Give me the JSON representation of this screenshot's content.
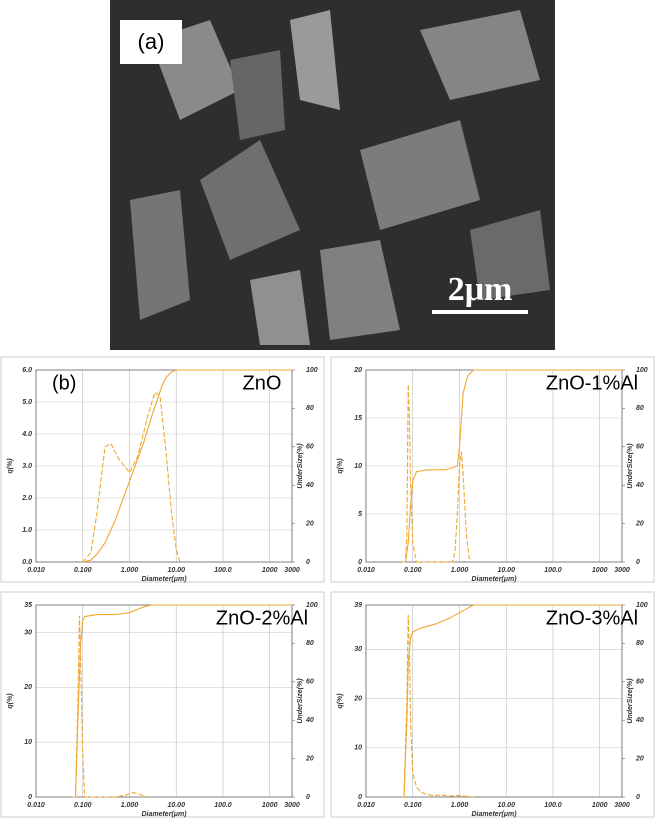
{
  "panel_a": {
    "label": "(a)",
    "scale_bar": "2μm"
  },
  "panel_b": {
    "label": "(b)"
  },
  "chart_data": [
    {
      "type": "line",
      "title": "ZnO",
      "x_label": "Diameter(μm)",
      "y_label": "q(%)",
      "y2_label": "UnderSize(%)",
      "xlog": true,
      "grid": true,
      "xlim": [
        0.01,
        3000
      ],
      "xticks": [
        {
          "value": 0.01,
          "label": "0.010"
        },
        {
          "value": 0.1,
          "label": "0.100"
        },
        {
          "value": 1,
          "label": "1.000"
        },
        {
          "value": 10,
          "label": "10.00"
        },
        {
          "value": 100,
          "label": "100.0"
        },
        1000,
        3000
      ],
      "ylim": [
        0,
        6
      ],
      "yticks": [
        {
          "value": 0,
          "label": "0.0"
        },
        {
          "value": 1,
          "label": "1.0"
        },
        {
          "value": 2,
          "label": "2.0"
        },
        {
          "value": 3,
          "label": "3.0"
        },
        {
          "value": 4,
          "label": "4.0"
        },
        {
          "value": 5,
          "label": "5.0"
        },
        {
          "value": 6,
          "label": "6.0"
        }
      ],
      "y2lim": [
        0,
        100
      ],
      "y2ticks": [
        0,
        20,
        40,
        60,
        80,
        100
      ],
      "series": [
        {
          "color": "#f0a830",
          "style": "dashed",
          "x": [
            0.1,
            0.15,
            0.2,
            0.3,
            0.4,
            0.6,
            1.0,
            1.5,
            2.5,
            3.5,
            4.5,
            6,
            8,
            10,
            12
          ],
          "values": [
            0,
            0.3,
            1.5,
            3.6,
            3.7,
            3.2,
            2.8,
            3.3,
            4.6,
            5.3,
            5.2,
            3.5,
            1.5,
            0.4,
            0
          ]
        },
        {
          "color": "#f0a830",
          "style": "solid",
          "axis": "y2",
          "x": [
            0.1,
            0.15,
            0.2,
            0.3,
            0.5,
            1,
            2,
            3,
            4,
            5,
            6,
            8,
            10,
            12,
            3000
          ],
          "values": [
            0,
            1,
            4,
            10,
            22,
            42,
            62,
            76,
            85,
            92,
            96,
            99,
            100,
            100,
            100
          ]
        }
      ]
    },
    {
      "type": "line",
      "title": "ZnO-1%Al",
      "x_label": "Diameter(μm)",
      "y_label": "q(%)",
      "y2_label": "UnderSize(%)",
      "xlog": true,
      "grid": true,
      "xlim": [
        0.01,
        3000
      ],
      "xticks": [
        {
          "value": 0.01,
          "label": "0.010"
        },
        {
          "value": 0.1,
          "label": "0.100"
        },
        {
          "value": 1,
          "label": "1.000"
        },
        {
          "value": 10,
          "label": "10.00"
        },
        {
          "value": 100,
          "label": "100.0"
        },
        1000,
        3000
      ],
      "ylim": [
        0,
        20
      ],
      "yticks": [
        0,
        5,
        10,
        15,
        20
      ],
      "y2lim": [
        0,
        100
      ],
      "y2ticks": [
        0,
        20,
        40,
        60,
        80,
        100
      ],
      "series": [
        {
          "color": "#f0a830",
          "style": "dashed",
          "x": [
            0.06,
            0.07,
            0.075,
            0.08,
            0.085,
            0.09,
            0.1,
            0.12,
            0.7,
            0.8,
            0.9,
            1.0,
            1.1,
            1.2,
            1.4,
            1.6,
            1.8
          ],
          "values": [
            0,
            0,
            3,
            18.5,
            15,
            8,
            2,
            0,
            0,
            1,
            5,
            10,
            11.5,
            9,
            3,
            0.5,
            0
          ]
        },
        {
          "color": "#f0a830",
          "style": "solid",
          "axis": "y2",
          "x": [
            0.06,
            0.07,
            0.08,
            0.09,
            0.1,
            0.12,
            0.2,
            0.5,
            0.9,
            1.0,
            1.1,
            1.2,
            1.5,
            2,
            3000
          ],
          "values": [
            0,
            0,
            10,
            30,
            42,
            47,
            48,
            48,
            50,
            60,
            75,
            88,
            97,
            100,
            100
          ]
        }
      ]
    },
    {
      "type": "line",
      "title": "ZnO-2%Al",
      "x_label": "Diameter(μm)",
      "y_label": "q(%)",
      "y2_label": "UnderSize(%)",
      "xlog": true,
      "grid": true,
      "xlim": [
        0.01,
        3000
      ],
      "xticks": [
        {
          "value": 0.01,
          "label": "0.010"
        },
        {
          "value": 0.1,
          "label": "0.100"
        },
        {
          "value": 1,
          "label": "1.000"
        },
        {
          "value": 10,
          "label": "10.00"
        },
        {
          "value": 100,
          "label": "100.0"
        },
        1000,
        3000
      ],
      "ylim": [
        0,
        35
      ],
      "yticks": [
        0,
        10,
        20,
        30,
        35
      ],
      "y2lim": [
        0,
        100
      ],
      "y2ticks": [
        0,
        20,
        40,
        60,
        80,
        100
      ],
      "series": [
        {
          "color": "#f0a830",
          "style": "dashed",
          "x": [
            0.06,
            0.07,
            0.08,
            0.085,
            0.09,
            0.1,
            0.11,
            0.5,
            0.8,
            1.2,
            1.6,
            2.5
          ],
          "values": [
            0,
            0,
            20,
            33,
            25,
            8,
            0,
            0,
            0.3,
            0.8,
            0.5,
            0
          ]
        },
        {
          "color": "#f0a830",
          "style": "solid",
          "axis": "y2",
          "x": [
            0.06,
            0.07,
            0.08,
            0.09,
            0.1,
            0.11,
            0.2,
            0.5,
            1,
            2,
            3,
            3000
          ],
          "values": [
            0,
            0,
            45,
            80,
            92,
            94,
            95,
            95,
            96,
            99,
            100,
            100
          ]
        }
      ]
    },
    {
      "type": "line",
      "title": "ZnO-3%Al",
      "x_label": "Diameter(μm)",
      "y_label": "q(%)",
      "y2_label": "UnderSize(%)",
      "xlog": true,
      "grid": true,
      "xlim": [
        0.01,
        3000
      ],
      "xticks": [
        {
          "value": 0.01,
          "label": "0.010"
        },
        {
          "value": 0.1,
          "label": "0.100"
        },
        {
          "value": 1,
          "label": "1.000"
        },
        {
          "value": 10,
          "label": "10.00"
        },
        {
          "value": 100,
          "label": "100.0"
        },
        1000,
        3000
      ],
      "ylim": [
        0,
        39
      ],
      "yticks": [
        0,
        10,
        20,
        30,
        39
      ],
      "y2lim": [
        0,
        100
      ],
      "y2ticks": [
        0,
        20,
        40,
        60,
        80,
        100
      ],
      "series": [
        {
          "color": "#f0a830",
          "style": "dashed",
          "x": [
            0.06,
            0.065,
            0.075,
            0.08,
            0.085,
            0.09,
            0.1,
            0.12,
            0.15,
            0.2,
            0.3,
            0.4,
            0.6,
            1.0,
            1.5,
            2
          ],
          "values": [
            0,
            0,
            20,
            37,
            30,
            15,
            5,
            2,
            1,
            0.5,
            0.3,
            0.4,
            0.2,
            0.3,
            0.1,
            0
          ]
        },
        {
          "color": "#f0a830",
          "style": "solid",
          "axis": "y2",
          "x": [
            0.06,
            0.065,
            0.075,
            0.08,
            0.09,
            0.1,
            0.15,
            0.3,
            0.6,
            1,
            2,
            3000
          ],
          "values": [
            0,
            0,
            40,
            70,
            83,
            86,
            88,
            90,
            93,
            96,
            100,
            100
          ]
        }
      ]
    }
  ]
}
